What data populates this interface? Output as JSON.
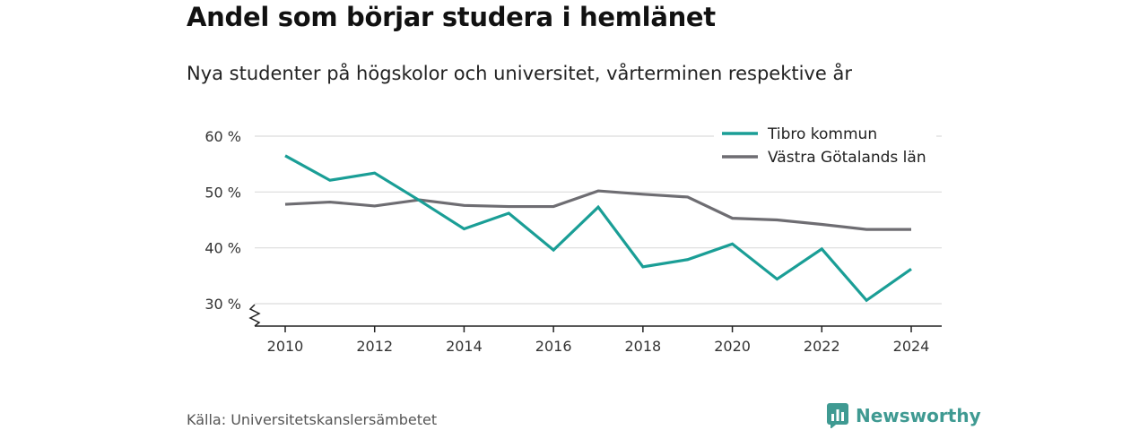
{
  "title": "Andel som börjar studera i hemlänet",
  "subtitle": "Nya studenter på högskolor och universitet, vårterminen respektive år",
  "source": "Källa: Universitetskanslersämbetet",
  "brand": {
    "name": "Newsworthy",
    "icon": "bar-chart-logo-icon",
    "color": "#3f9a92"
  },
  "chart_data": {
    "type": "line",
    "x": [
      2010,
      2011,
      2012,
      2013,
      2014,
      2015,
      2016,
      2017,
      2018,
      2019,
      2020,
      2021,
      2022,
      2023,
      2024
    ],
    "series": [
      {
        "name": "Tibro kommun",
        "color": "#1a9e96",
        "values": [
          56.5,
          52.1,
          53.4,
          48.5,
          43.4,
          46.2,
          39.6,
          47.3,
          36.6,
          37.9,
          40.7,
          34.4,
          39.8,
          30.6,
          36.2
        ]
      },
      {
        "name": "Västra Götalands län",
        "color": "#6e6d72",
        "values": [
          47.8,
          48.2,
          47.5,
          48.6,
          47.6,
          47.4,
          47.4,
          50.2,
          49.6,
          49.1,
          45.3,
          45.0,
          44.2,
          43.3,
          43.3
        ]
      }
    ],
    "xticks": [
      "2010",
      "2012",
      "2014",
      "2016",
      "2018",
      "2020",
      "2022",
      "2024"
    ],
    "yticks": [
      "30 %",
      "40 %",
      "50 %",
      "60 %"
    ],
    "ylim": [
      30,
      60
    ],
    "grid": true,
    "legend": "top-right",
    "axis_break": true
  }
}
